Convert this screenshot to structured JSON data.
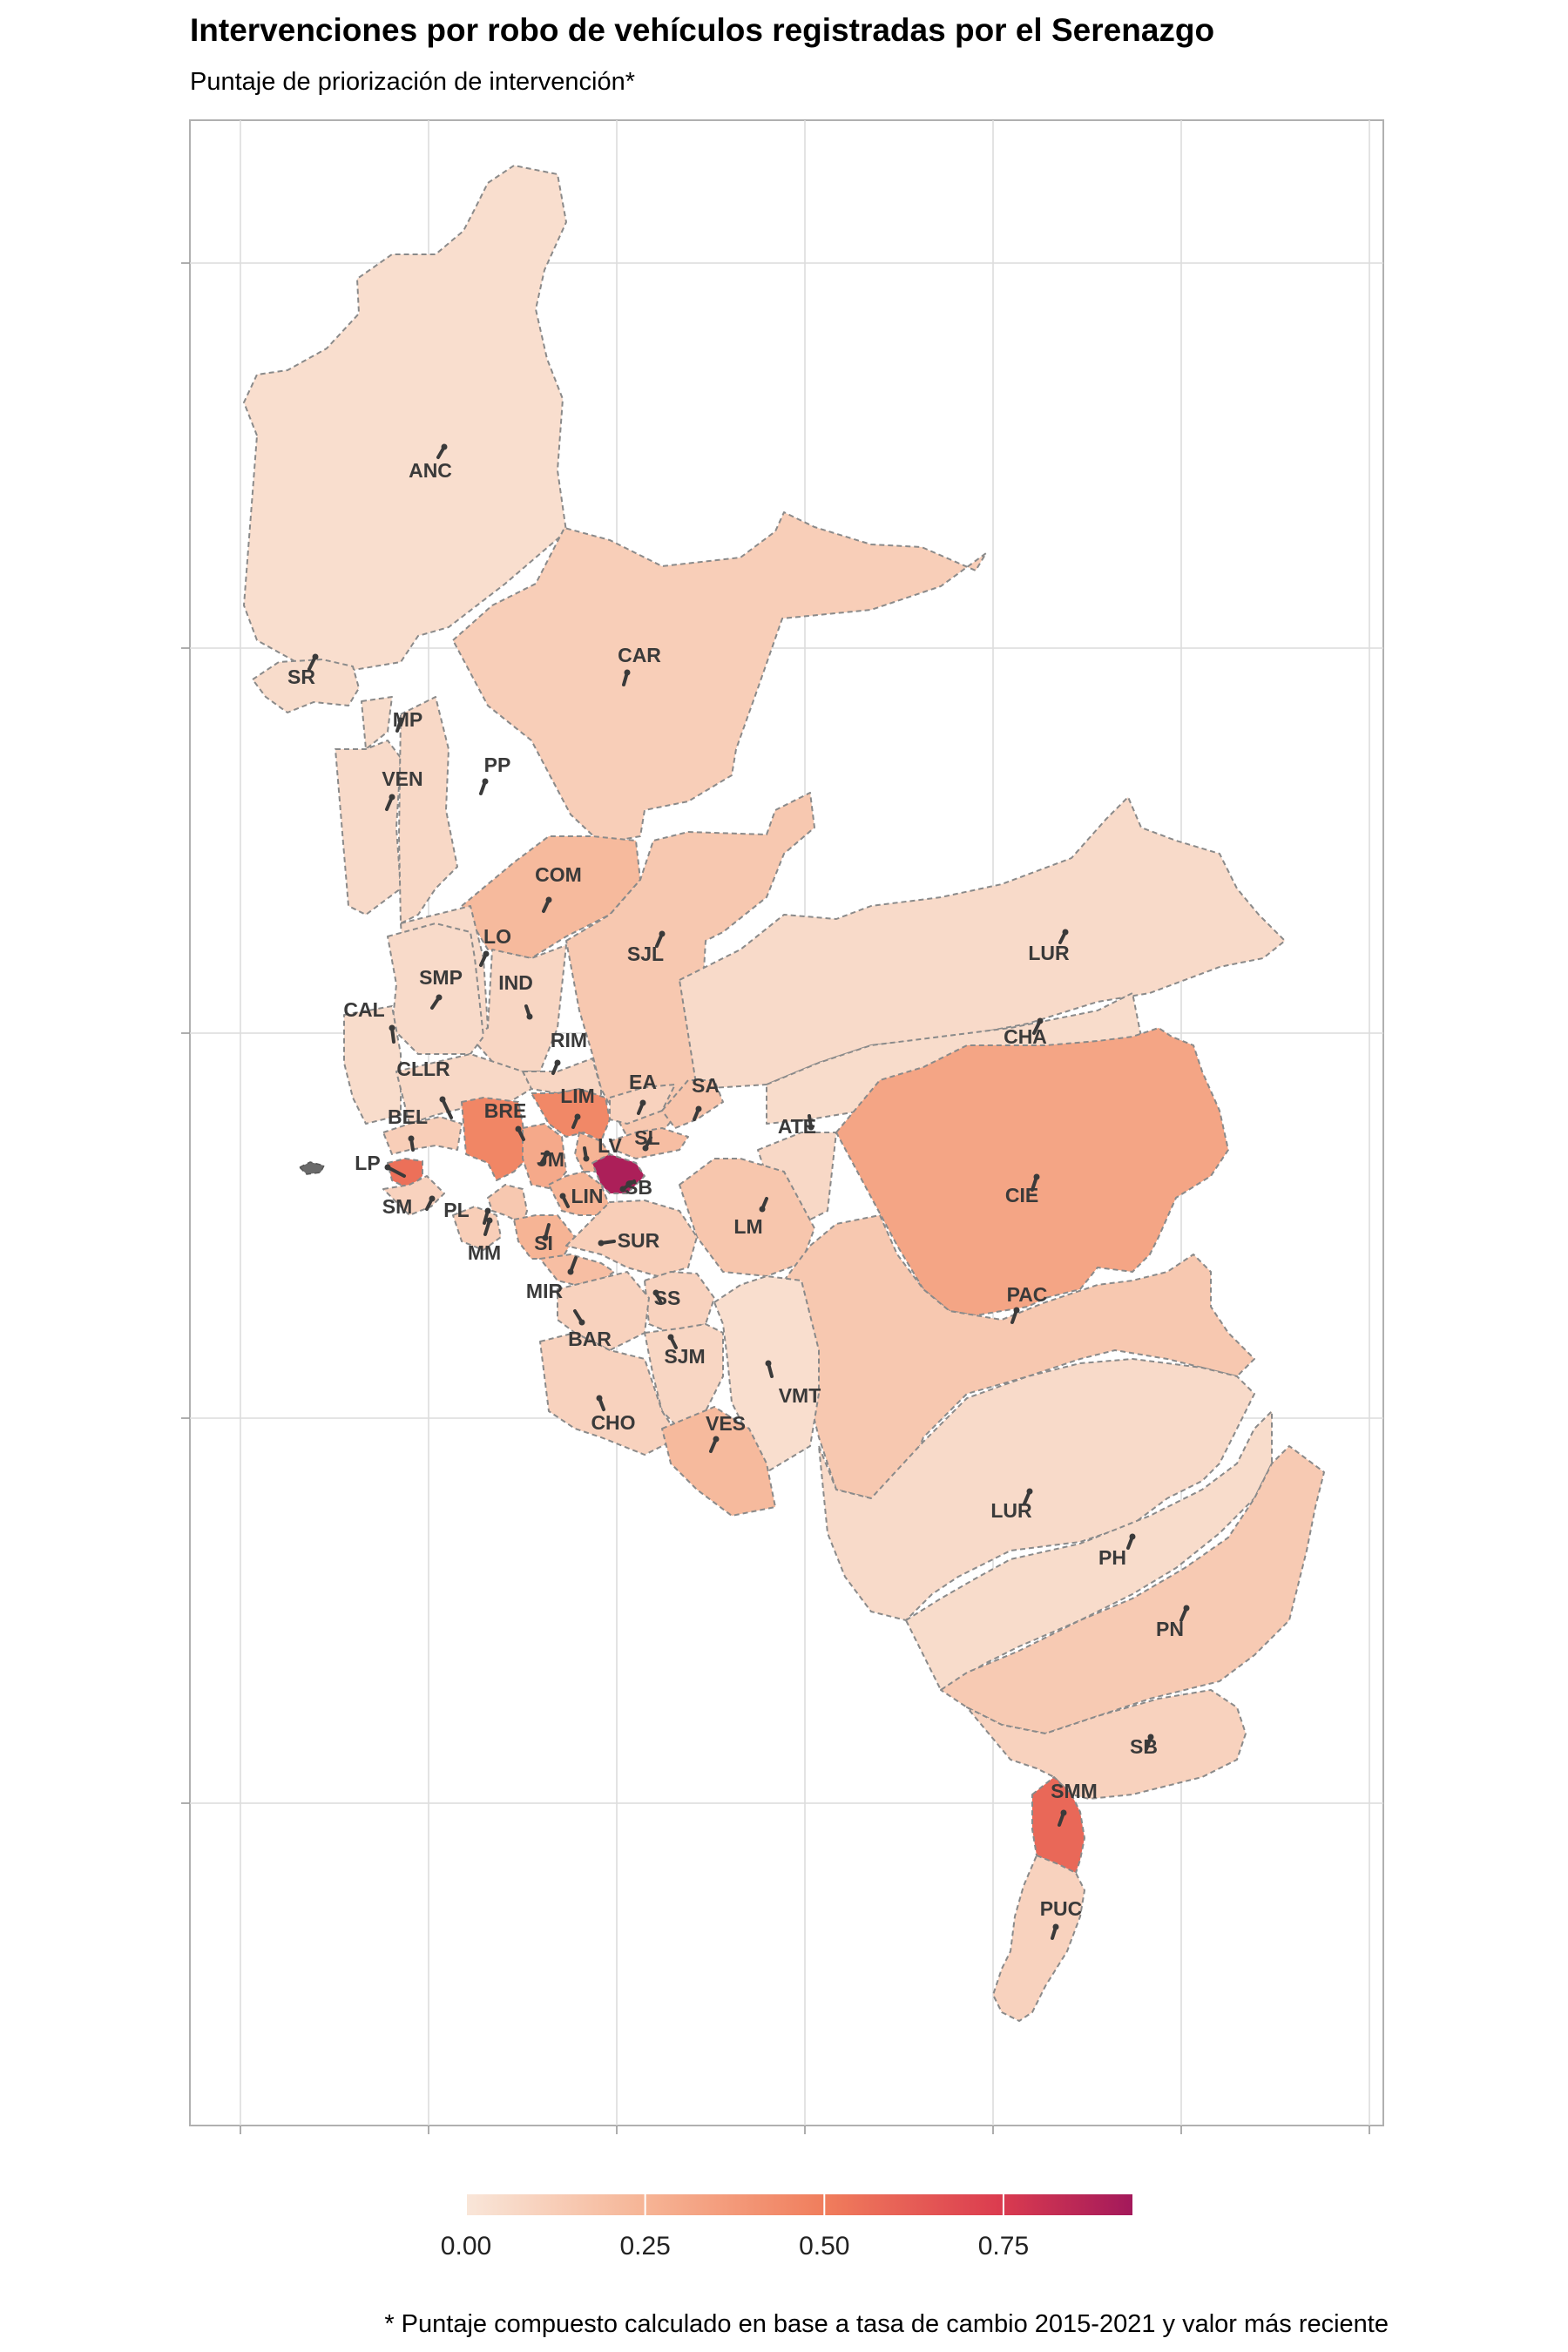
{
  "title": "Intervenciones por robo de vehículos registradas por el Serenazgo",
  "subtitle": "Puntaje de priorización de intervención*",
  "caption": "* Puntaje compuesto calculado en base a tasa de cambio 2015-2021 y valor más reciente",
  "colors": {
    "scale_low": "#f9e6d9",
    "scale_mid": "#f07d5c",
    "scale_high": "#a3195b",
    "border": "#8a8a8a",
    "grid": "#dcdcdc",
    "panel_border": "#b0b0b0"
  },
  "legend": {
    "min": 0.0,
    "max": 0.93,
    "ticks": [
      {
        "value": 0.0,
        "label": "0.00"
      },
      {
        "value": 0.25,
        "label": "0.25"
      },
      {
        "value": 0.5,
        "label": "0.50"
      },
      {
        "value": 0.75,
        "label": "0.75"
      }
    ]
  },
  "districts": [
    {
      "code": "ANC",
      "score": 0.04
    },
    {
      "code": "SR",
      "score": 0.05
    },
    {
      "code": "CAR",
      "score": 0.12
    },
    {
      "code": "MP",
      "score": 0.05
    },
    {
      "code": "VEN",
      "score": 0.06
    },
    {
      "code": "PP",
      "score": 0.07
    },
    {
      "code": "COM",
      "score": 0.22
    },
    {
      "code": "LO",
      "score": 0.06
    },
    {
      "code": "IND",
      "score": 0.08
    },
    {
      "code": "SJL",
      "score": 0.15
    },
    {
      "code": "SMP",
      "score": 0.06
    },
    {
      "code": "CAL",
      "score": 0.05
    },
    {
      "code": "LUR",
      "score": 0.06
    },
    {
      "code": "CHA",
      "score": 0.05
    },
    {
      "code": "RIM",
      "score": 0.08
    },
    {
      "code": "CLLR",
      "score": 0.07
    },
    {
      "code": "EA",
      "score": 0.1
    },
    {
      "code": "SA",
      "score": 0.17
    },
    {
      "code": "LIM",
      "score": 0.45
    },
    {
      "code": "BEL",
      "score": 0.12
    },
    {
      "code": "BRE",
      "score": 0.46
    },
    {
      "code": "ATE",
      "score": 0.07
    },
    {
      "code": "SL",
      "score": 0.2
    },
    {
      "code": "LV",
      "score": 0.25
    },
    {
      "code": "JM",
      "score": 0.3
    },
    {
      "code": "LP",
      "score": 0.55
    },
    {
      "code": "CIE",
      "score": 0.32
    },
    {
      "code": "SB",
      "score": 0.9
    },
    {
      "code": "SM",
      "score": 0.1
    },
    {
      "code": "PL",
      "score": 0.15
    },
    {
      "code": "LIN",
      "score": 0.25
    },
    {
      "code": "LM",
      "score": 0.16
    },
    {
      "code": "MM",
      "score": 0.12
    },
    {
      "code": "SI",
      "score": 0.25
    },
    {
      "code": "SUR",
      "score": 0.12
    },
    {
      "code": "MIR",
      "score": 0.2
    },
    {
      "code": "PAC",
      "score": 0.15
    },
    {
      "code": "SS",
      "score": 0.1
    },
    {
      "code": "BAR",
      "score": 0.1
    },
    {
      "code": "SJM",
      "score": 0.08
    },
    {
      "code": "VMT",
      "score": 0.04
    },
    {
      "code": "CHO",
      "score": 0.1
    },
    {
      "code": "VES",
      "score": 0.22
    },
    {
      "code": "LUR",
      "score": 0.06
    },
    {
      "code": "PH",
      "score": 0.05
    },
    {
      "code": "PN",
      "score": 0.14
    },
    {
      "code": "SB",
      "score": 0.1
    },
    {
      "code": "SMM",
      "score": 0.58
    },
    {
      "code": "PUC",
      "score": 0.1
    }
  ]
}
